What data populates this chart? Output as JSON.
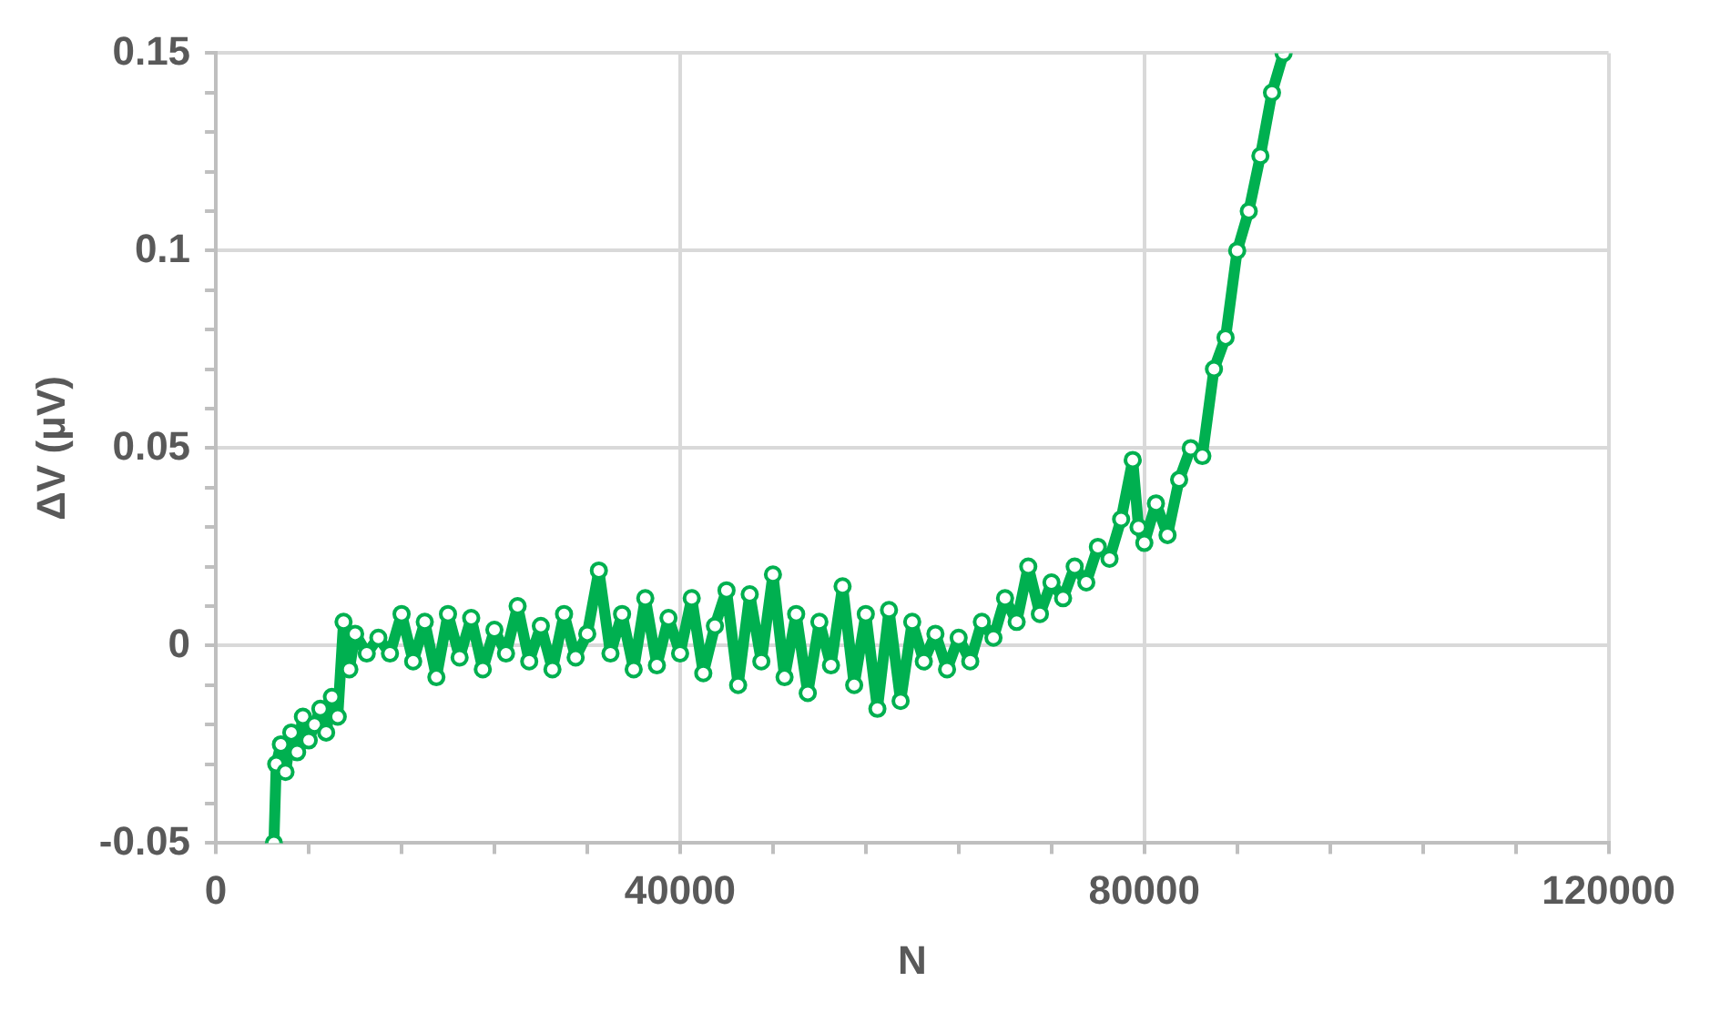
{
  "chart_data": {
    "type": "line",
    "xlabel": "N",
    "ylabel": "ΔV (μV)",
    "xlim": [
      0,
      120000
    ],
    "ylim": [
      -0.05,
      0.15
    ],
    "xticks": [
      0,
      {
        "value": 8000,
        "label": null
      },
      {
        "value": 16000,
        "label": null
      },
      {
        "value": 24000,
        "label": null
      },
      {
        "value": 32000,
        "label": null
      },
      40000,
      {
        "value": 48000,
        "label": null
      },
      {
        "value": 56000,
        "label": null
      },
      {
        "value": 64000,
        "label": null
      },
      {
        "value": 72000,
        "label": null
      },
      80000,
      {
        "value": 88000,
        "label": null
      },
      {
        "value": 96000,
        "label": null
      },
      {
        "value": 104000,
        "label": null
      },
      {
        "value": 112000,
        "label": null
      },
      120000
    ],
    "yticks": [
      -0.05,
      {
        "value": -0.04,
        "label": null
      },
      {
        "value": -0.03,
        "label": null
      },
      {
        "value": -0.02,
        "label": null
      },
      {
        "value": -0.01,
        "label": null
      },
      0,
      {
        "value": 0.01,
        "label": null
      },
      {
        "value": 0.02,
        "label": null
      },
      {
        "value": 0.03,
        "label": null
      },
      {
        "value": 0.04,
        "label": null
      },
      0.05,
      {
        "value": 0.06,
        "label": null
      },
      {
        "value": 0.07,
        "label": null
      },
      {
        "value": 0.08,
        "label": null
      },
      {
        "value": 0.09,
        "label": null
      },
      0.1,
      {
        "value": 0.11,
        "label": null
      },
      {
        "value": 0.12,
        "label": null
      },
      {
        "value": 0.13,
        "label": null
      },
      {
        "value": 0.14,
        "label": null
      },
      0.15
    ],
    "grid": true,
    "legend": false,
    "marker": "circle",
    "line_style": "solid",
    "x": [
      5000,
      5200,
      5600,
      6000,
      6500,
      7000,
      7500,
      8000,
      8500,
      9000,
      9500,
      10000,
      10500,
      11000,
      11500,
      12000,
      13000,
      14000,
      15000,
      16000,
      17000,
      18000,
      19000,
      20000,
      21000,
      22000,
      23000,
      24000,
      25000,
      26000,
      27000,
      28000,
      29000,
      30000,
      31000,
      32000,
      33000,
      34000,
      35000,
      36000,
      37000,
      38000,
      39000,
      40000,
      41000,
      42000,
      43000,
      44000,
      45000,
      46000,
      47000,
      48000,
      49000,
      50000,
      51000,
      52000,
      53000,
      54000,
      55000,
      56000,
      57000,
      58000,
      59000,
      60000,
      61000,
      62000,
      63000,
      64000,
      65000,
      66000,
      67000,
      68000,
      69000,
      70000,
      71000,
      72000,
      73000,
      74000,
      75000,
      76000,
      77000,
      78000,
      79000,
      79500,
      80000,
      81000,
      82000,
      83000,
      84000,
      85000,
      86000,
      87000,
      88000,
      89000,
      90000,
      91000,
      92000
    ],
    "series": [
      {
        "color": "#00b050",
        "values": [
          -0.05,
          -0.03,
          -0.025,
          -0.032,
          -0.022,
          -0.027,
          -0.018,
          -0.024,
          -0.02,
          -0.016,
          -0.022,
          -0.013,
          -0.018,
          0.006,
          -0.006,
          0.003,
          -0.002,
          0.002,
          -0.002,
          0.008,
          -0.004,
          0.006,
          -0.008,
          0.008,
          -0.003,
          0.007,
          -0.006,
          0.004,
          -0.002,
          0.01,
          -0.004,
          0.005,
          -0.006,
          0.008,
          -0.003,
          0.003,
          0.019,
          -0.002,
          0.008,
          -0.006,
          0.012,
          -0.005,
          0.007,
          -0.002,
          0.012,
          -0.007,
          0.005,
          0.014,
          -0.01,
          0.013,
          -0.004,
          0.018,
          -0.008,
          0.008,
          -0.012,
          0.006,
          -0.005,
          0.015,
          -0.01,
          0.008,
          -0.016,
          0.009,
          -0.014,
          0.006,
          -0.004,
          0.003,
          -0.006,
          0.002,
          -0.004,
          0.006,
          0.002,
          0.012,
          0.006,
          0.02,
          0.008,
          0.016,
          0.012,
          0.02,
          0.016,
          0.025,
          0.022,
          0.032,
          0.047,
          0.03,
          0.026,
          0.036,
          0.028,
          0.042,
          0.05,
          0.048,
          0.07,
          0.078,
          0.1,
          0.11,
          0.124,
          0.14,
          0.15
        ]
      }
    ]
  }
}
